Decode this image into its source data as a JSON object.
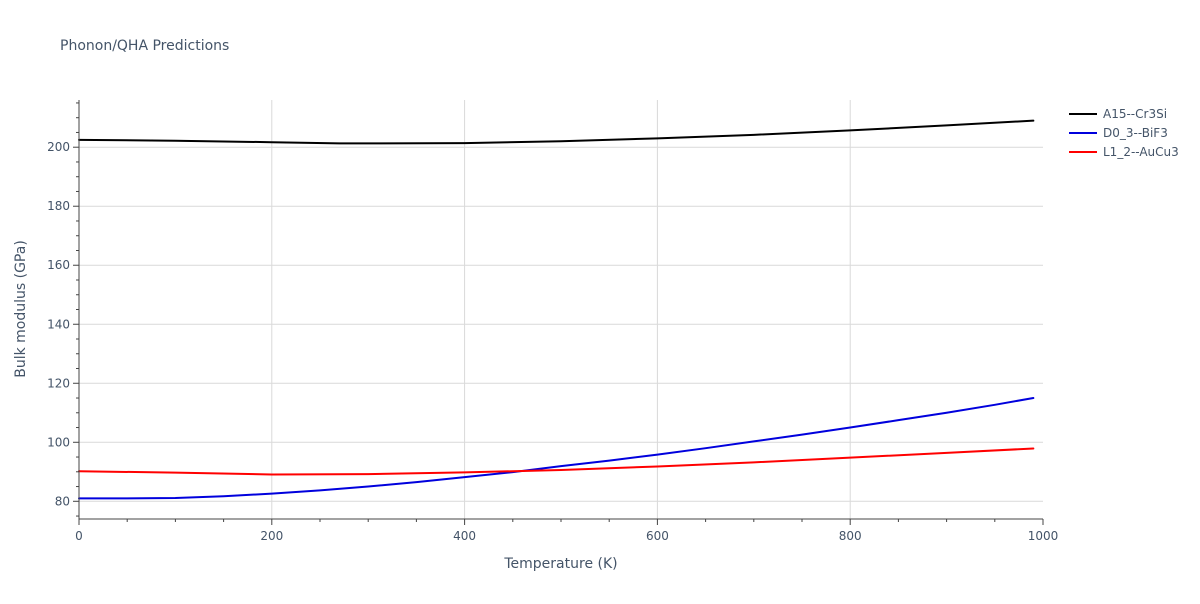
{
  "chart_data": {
    "type": "line",
    "title": "Phonon/QHA Predictions",
    "xlabel": "Temperature (K)",
    "ylabel": "Bulk modulus (GPa)",
    "xlim": [
      0,
      1000
    ],
    "ylim": [
      74,
      216
    ],
    "x_ticks": [
      0,
      200,
      400,
      600,
      800,
      1000
    ],
    "x_tick_labels": [
      "0",
      "200",
      "400",
      "600",
      "800",
      "1000"
    ],
    "x_minor_ticks": [
      50,
      100,
      150,
      250,
      300,
      350,
      450,
      500,
      550,
      650,
      700,
      750,
      850,
      900,
      950
    ],
    "y_ticks": [
      80,
      100,
      120,
      140,
      160,
      180,
      200
    ],
    "y_tick_labels": [
      "80",
      "100",
      "120",
      "140",
      "160",
      "180",
      "200"
    ],
    "y_minor_ticks": [
      75,
      85,
      90,
      95,
      105,
      110,
      115,
      125,
      130,
      135,
      145,
      150,
      155,
      165,
      170,
      175,
      185,
      190,
      195,
      205,
      210,
      215
    ],
    "grid": true,
    "legend_position": "top-right-outside",
    "series": [
      {
        "name": "A15--Cr3Si",
        "color": "#000000",
        "x": [
          0,
          100,
          200,
          270,
          300,
          400,
          500,
          600,
          700,
          800,
          900,
          990
        ],
        "y": [
          202.5,
          202.2,
          201.7,
          201.3,
          201.3,
          201.4,
          202.0,
          203.0,
          204.2,
          205.7,
          207.4,
          209.0
        ]
      },
      {
        "name": "D0_3--BiF3",
        "color": "#0000dd",
        "x": [
          0,
          50,
          100,
          150,
          200,
          250,
          300,
          350,
          400,
          450,
          500,
          550,
          600,
          650,
          700,
          750,
          800,
          850,
          900,
          950,
          990
        ],
        "y": [
          81.0,
          81.0,
          81.1,
          81.7,
          82.6,
          83.7,
          85.0,
          86.5,
          88.2,
          89.9,
          91.9,
          93.8,
          95.8,
          98.0,
          100.3,
          102.6,
          105.0,
          107.5,
          110.0,
          112.7,
          115.0
        ]
      },
      {
        "name": "L1_2--AuCu3",
        "color": "#ff0000",
        "x": [
          0,
          100,
          200,
          300,
          400,
          500,
          600,
          700,
          800,
          900,
          990
        ],
        "y": [
          90.2,
          89.7,
          89.1,
          89.2,
          89.8,
          90.6,
          91.8,
          93.2,
          94.8,
          96.4,
          97.9
        ]
      }
    ]
  }
}
